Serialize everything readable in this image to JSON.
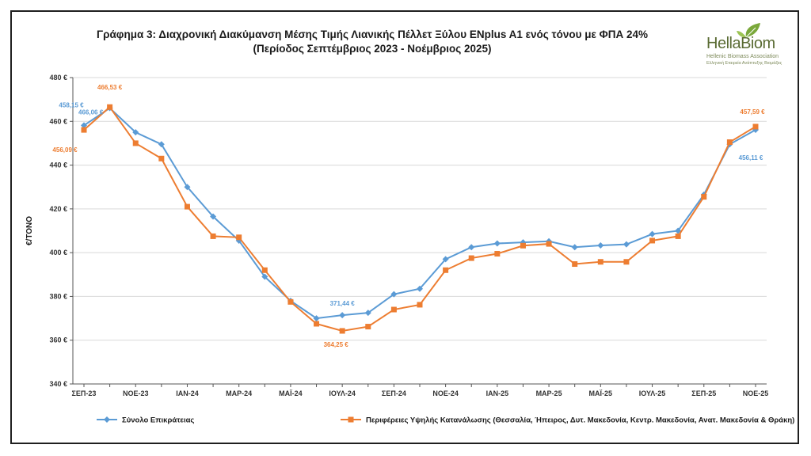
{
  "title_line1": "Γράφημα 3: Διαχρονική Διακύμανση Μέσης Τιμής Λιανικής Πέλλετ Ξύλου ENplus A1 ενός τόνου με ΦΠΑ 24%",
  "title_line2": "(Περίοδος Σεπτέμβριος 2023 - Νοέμβριος 2025)",
  "logo": {
    "name": "HellaBiom",
    "subtitle1": "Hellenic Biomass Association",
    "subtitle2": "Ελληνική Εταιρεία Ανάπτυξης Βιομάζας",
    "icon": "leaf-icon"
  },
  "colors": {
    "blue": "#5b9bd5",
    "orange": "#ed7d31"
  },
  "chart_data": {
    "type": "line",
    "ylabel": "€/ΤΟΝΟ",
    "ylim": [
      340,
      480
    ],
    "y_ticks": [
      "340 €",
      "360 €",
      "380 €",
      "400 €",
      "420 €",
      "440 €",
      "460 €",
      "480 €"
    ],
    "y_tick_values": [
      340,
      360,
      380,
      400,
      420,
      440,
      460,
      480
    ],
    "x_count": 27,
    "x_tick_labels": [
      "ΣΕΠ-23",
      "ΝΟΕ-23",
      "ΙΑΝ-24",
      "ΜΑΡ-24",
      "ΜΑΪ-24",
      "ΙΟΥΛ-24",
      "ΣΕΠ-24",
      "ΝΟΕ-24",
      "ΙΑΝ-25",
      "ΜΑΡ-25",
      "ΜΑΪ-25",
      "ΙΟΥΛ-25",
      "ΣΕΠ-25",
      "ΝΟΕ-25"
    ],
    "x_tick_index": [
      0,
      2,
      4,
      6,
      8,
      10,
      12,
      14,
      16,
      18,
      20,
      22,
      24,
      26
    ],
    "grid": "horizontal",
    "legend_position": "bottom",
    "series": [
      {
        "name": "Σύνολο Επικράτειας",
        "marker": "diamond",
        "color": "#5b9bd5",
        "values": [
          458.15,
          466.06,
          455.0,
          449.5,
          430.0,
          416.5,
          405.5,
          389.0,
          378.0,
          370.0,
          371.44,
          372.5,
          381.0,
          383.5,
          397.0,
          402.5,
          404.2,
          404.7,
          405.2,
          402.5,
          403.3,
          403.8,
          408.5,
          410.0,
          426.5,
          449.5,
          456.11
        ]
      },
      {
        "name": "Περιφέρειες Υψηλής Κατανάλωσης (Θεσσαλία, Ήπειρος, Δυτ. Μακεδονία, Κεντρ. Μακεδονία, Ανατ. Μακεδονία & Θράκη)",
        "marker": "square",
        "color": "#ed7d31",
        "values": [
          456.09,
          466.53,
          450.0,
          443.0,
          421.0,
          407.5,
          407.0,
          392.0,
          377.5,
          367.5,
          364.25,
          366.2,
          374.0,
          376.2,
          392.0,
          397.5,
          399.5,
          403.2,
          404.0,
          394.8,
          395.8,
          395.8,
          405.5,
          407.5,
          425.5,
          450.5,
          457.59
        ]
      }
    ],
    "data_labels": [
      {
        "series": 0,
        "index": 0,
        "text": "458,15 €"
      },
      {
        "series": 0,
        "index": 1,
        "text": "466,06 €"
      },
      {
        "series": 1,
        "index": 1,
        "text": "466,53 €"
      },
      {
        "series": 1,
        "index": 0,
        "text": "456,09 €"
      },
      {
        "series": 0,
        "index": 10,
        "text": "371,44 €"
      },
      {
        "series": 1,
        "index": 10,
        "text": "364,25 €"
      },
      {
        "series": 1,
        "index": 26,
        "text": "457,59 €"
      },
      {
        "series": 0,
        "index": 26,
        "text": "456,11 €"
      }
    ]
  }
}
